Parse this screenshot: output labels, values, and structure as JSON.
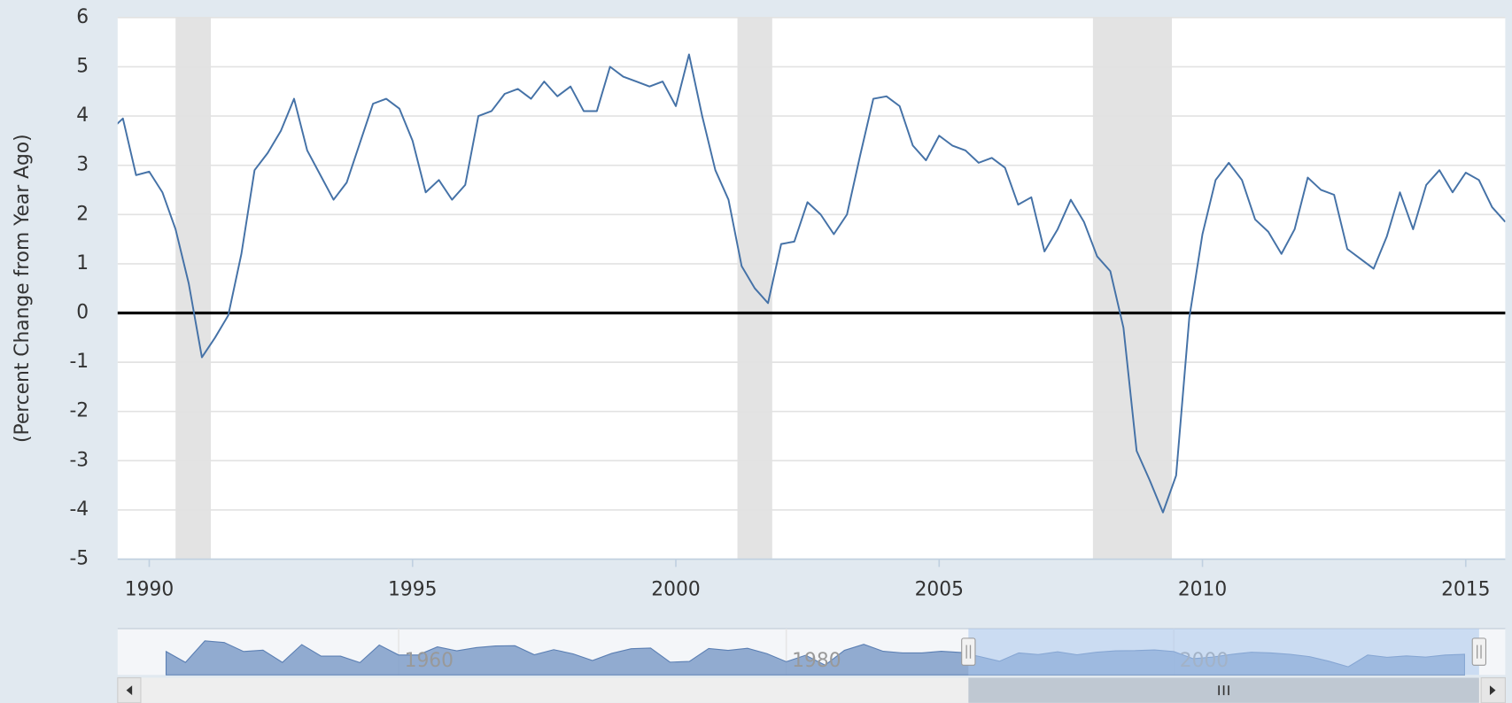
{
  "chart_data": [
    {
      "type": "line",
      "y_label": "(Percent Change from Year Ago)",
      "color": "#4572a7",
      "grid": true,
      "xlim": [
        1989.4,
        2015.75
      ],
      "xticks": [
        1990,
        1995,
        2000,
        2005,
        2010,
        2015
      ],
      "ylim": [
        -5,
        6
      ],
      "yticks": [
        -5,
        -4,
        -3,
        -2,
        -1,
        0,
        1,
        2,
        3,
        4,
        5,
        6
      ],
      "recessions": [
        [
          1990.5,
          1991.17
        ],
        [
          2001.17,
          2001.83
        ],
        [
          2007.92,
          2009.42
        ]
      ],
      "x": [
        1989.25,
        1989.5,
        1989.75,
        1990,
        1990.25,
        1990.5,
        1990.75,
        1991,
        1991.25,
        1991.5,
        1991.75,
        1992,
        1992.25,
        1992.5,
        1992.75,
        1993,
        1993.25,
        1993.5,
        1993.75,
        1994,
        1994.25,
        1994.5,
        1994.75,
        1995,
        1995.25,
        1995.5,
        1995.75,
        1996,
        1996.25,
        1996.5,
        1996.75,
        1997,
        1997.25,
        1997.5,
        1997.75,
        1998,
        1998.25,
        1998.5,
        1998.75,
        1999,
        1999.25,
        1999.5,
        1999.75,
        2000,
        2000.25,
        2000.5,
        2000.75,
        2001,
        2001.25,
        2001.5,
        2001.75,
        2002,
        2002.25,
        2002.5,
        2002.75,
        2003,
        2003.25,
        2003.5,
        2003.75,
        2004,
        2004.25,
        2004.5,
        2004.75,
        2005,
        2005.25,
        2005.5,
        2005.75,
        2006,
        2006.25,
        2006.5,
        2006.75,
        2007,
        2007.25,
        2007.5,
        2007.75,
        2008,
        2008.25,
        2008.5,
        2008.75,
        2009,
        2009.25,
        2009.5,
        2009.75,
        2010,
        2010.25,
        2010.5,
        2010.75,
        2011,
        2011.25,
        2011.5,
        2011.75,
        2012,
        2012.25,
        2012.5,
        2012.75,
        2013,
        2013.25,
        2013.5,
        2013.75,
        2014,
        2014.25,
        2014.5,
        2014.75,
        2015,
        2015.25,
        2015.5,
        2015.75
      ],
      "values": [
        3.7,
        3.95,
        2.8,
        2.87,
        2.45,
        1.7,
        0.6,
        -0.9,
        -0.5,
        -0.05,
        1.2,
        2.9,
        3.25,
        3.7,
        4.35,
        3.3,
        2.8,
        2.3,
        2.65,
        3.45,
        4.25,
        4.35,
        4.15,
        3.5,
        2.45,
        2.7,
        2.3,
        2.6,
        4.0,
        4.1,
        4.45,
        4.55,
        4.35,
        4.7,
        4.4,
        4.6,
        4.1,
        4.1,
        5.0,
        4.8,
        4.7,
        4.6,
        4.7,
        4.2,
        5.25,
        4.0,
        2.9,
        2.3,
        0.95,
        0.5,
        0.2,
        1.4,
        1.45,
        2.25,
        2.0,
        1.6,
        2.0,
        3.2,
        4.35,
        4.4,
        4.2,
        3.4,
        3.1,
        3.6,
        3.4,
        3.3,
        3.05,
        3.15,
        2.95,
        2.2,
        2.35,
        1.25,
        1.7,
        2.3,
        1.85,
        1.15,
        0.85,
        -0.3,
        -2.8,
        -3.4,
        -4.05,
        -3.3,
        -0.1,
        1.6,
        2.7,
        3.05,
        2.7,
        1.9,
        1.65,
        1.2,
        1.7,
        2.75,
        2.5,
        2.4,
        1.3,
        1.1,
        0.9,
        1.55,
        2.45,
        1.7,
        2.6,
        2.9,
        2.45,
        2.85,
        2.7,
        2.15,
        1.85
      ]
    },
    {
      "type": "area",
      "color": "#7f9ec9",
      "xlim": [
        1945.5,
        2017.1
      ],
      "ylim": [
        -6,
        14
      ],
      "xticks": [
        1960,
        1980,
        2000
      ],
      "x": [
        1948,
        1949,
        1950,
        1951,
        1952,
        1953,
        1954,
        1955,
        1956,
        1957,
        1958,
        1959,
        1960,
        1961,
        1962,
        1963,
        1964,
        1965,
        1966,
        1967,
        1968,
        1969,
        1970,
        1971,
        1972,
        1973,
        1974,
        1975,
        1976,
        1977,
        1978,
        1979,
        1980,
        1981,
        1982,
        1983,
        1984,
        1985,
        1986,
        1987,
        1988,
        1989,
        1990,
        1991,
        1992,
        1993,
        1994,
        1995,
        1996,
        1997,
        1998,
        1999,
        2000,
        2001,
        2002,
        2003,
        2004,
        2005,
        2006,
        2007,
        2008,
        2009,
        2010,
        2011,
        2012,
        2013,
        2014,
        2015
      ],
      "values": [
        4.1,
        -0.6,
        8.7,
        8.0,
        4.1,
        4.7,
        -0.6,
        7.1,
        2.1,
        2.1,
        -0.7,
        6.9,
        2.6,
        2.6,
        6.1,
        4.4,
        5.8,
        6.5,
        6.6,
        2.7,
        4.9,
        3.1,
        0.2,
        3.3,
        5.3,
        5.6,
        -0.5,
        -0.2,
        5.4,
        4.6,
        5.5,
        3.2,
        -0.3,
        2.5,
        -1.8,
        4.6,
        7.2,
        4.2,
        3.5,
        3.5,
        4.2,
        3.7,
        1.9,
        -0.1,
        3.5,
        2.8,
        4.0,
        2.7,
        3.8,
        4.4,
        4.5,
        4.8,
        4.1,
        1.0,
        1.7,
        2.9,
        3.8,
        3.5,
        2.9,
        1.9,
        -0.1,
        -2.5,
        2.6,
        1.6,
        2.2,
        1.7,
        2.6,
        2.9
      ]
    }
  ]
}
